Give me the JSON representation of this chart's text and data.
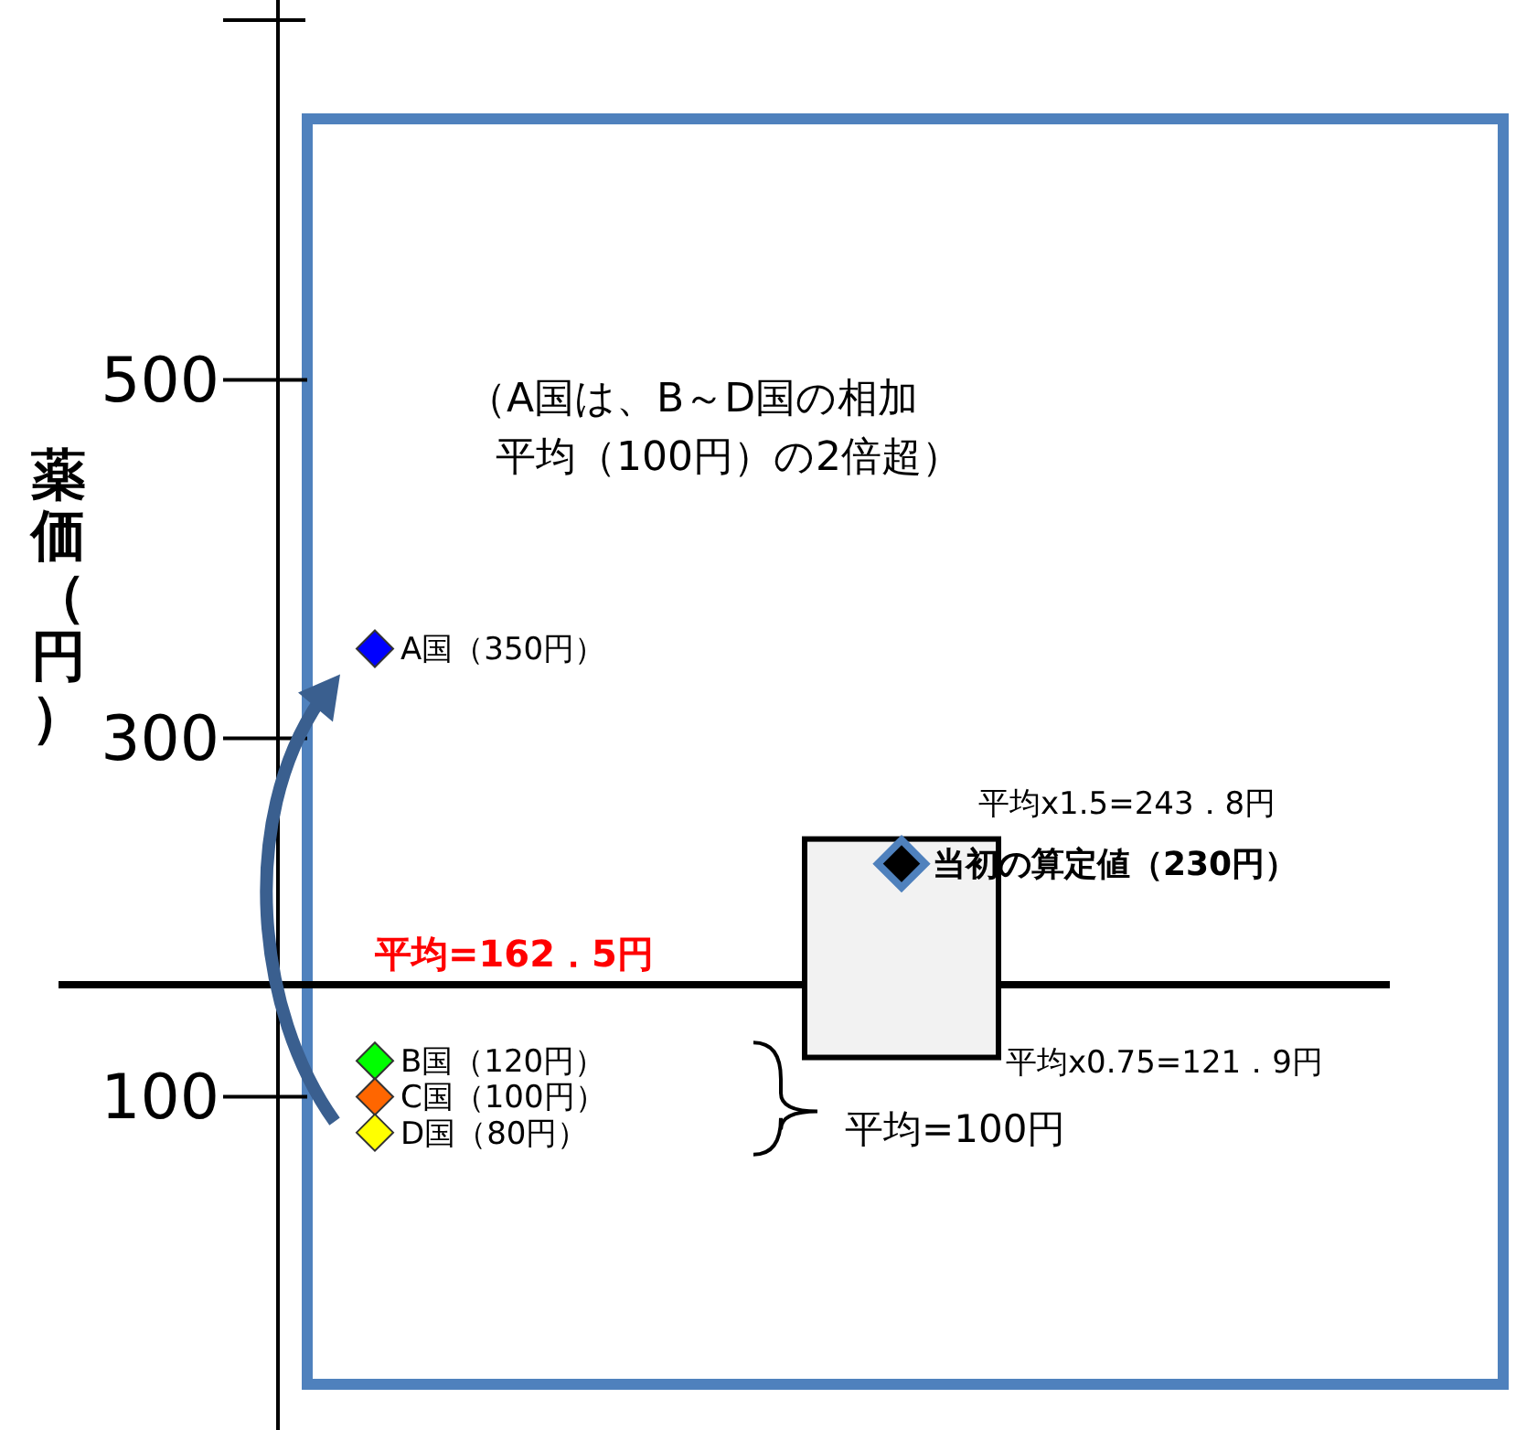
{
  "chart_data": {
    "type": "scatter",
    "ylabel": "薬価（円）",
    "categories": [
      null,
      null
    ],
    "ylim": [
      -86,
      712
    ],
    "yticks": [
      100,
      300,
      500
    ],
    "tick_labels": "y",
    "marker": "diamond",
    "grid": false,
    "series": [
      {
        "type": "bar",
        "color": "#f2f2f2",
        "base": [
          null,
          121.9
        ],
        "values": [
          null,
          121.9
        ]
      },
      {
        "color": "#0000ff",
        "values": [
          350,
          null
        ],
        "value_labels": [
          "A国（350円）",
          null
        ]
      },
      {
        "color": "#00ff00",
        "values": [
          120,
          null
        ],
        "value_labels": [
          "B国（120円）",
          null
        ]
      },
      {
        "color": "#ff6600",
        "values": [
          100,
          null
        ],
        "value_labels": [
          "C国（100円）",
          null
        ]
      },
      {
        "color": "#ffff00",
        "values": [
          80,
          null
        ],
        "value_labels": [
          "D国（80円）",
          null
        ]
      },
      {
        "color": "#000000",
        "values": [
          null,
          230
        ],
        "value_labels": [
          null,
          "当初の算定値（230円）"
        ]
      }
    ],
    "ref_lines": [
      {
        "axis": "y",
        "value": 162.5,
        "label": "平均=162．5円",
        "color": "#000000"
      }
    ],
    "annotations": [
      "（A国は、B～D国の相加",
      "平均（100円）の2倍超）",
      "平均=100円",
      "平均x1.5=243．8円",
      "平均x0.75=121．9円"
    ]
  }
}
